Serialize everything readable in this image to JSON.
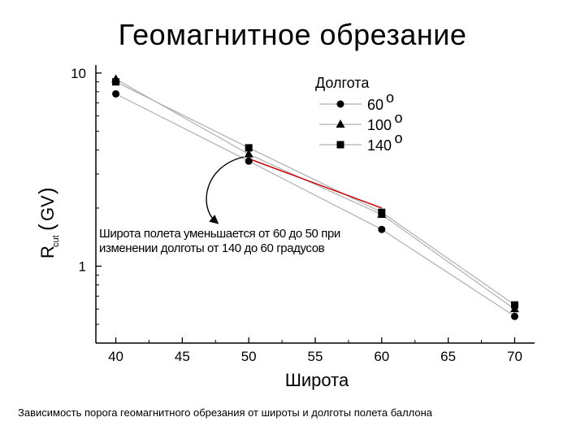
{
  "page": {
    "title": "Геомагнитное обрезание",
    "caption": "Зависимость порога геомагнитного обрезания от широты и долготы полета баллона"
  },
  "chart_data": {
    "type": "line",
    "xlabel": "Широта",
    "ylabel_parts": [
      "R",
      "cut",
      "(",
      "G",
      "V",
      ")"
    ],
    "xlim": [
      38.5,
      71.5
    ],
    "ylim": [
      0.4,
      11
    ],
    "yscale": "log",
    "x_ticks": [
      40,
      45,
      50,
      55,
      60,
      65,
      70
    ],
    "x_tick_labels": [
      "40",
      "45",
      "50",
      "55",
      "60",
      "65",
      "70"
    ],
    "y_ticks": [
      1,
      10
    ],
    "y_tick_labels": [
      "1",
      "10"
    ],
    "grid": false,
    "legend": {
      "title": "Долгота",
      "placement": "top-right",
      "degree_mark": "o"
    },
    "series": [
      {
        "name": "60",
        "marker": "circle",
        "color": "#000000",
        "line_color": "#b0b0b0",
        "x": [
          40,
          50,
          60,
          70
        ],
        "y": [
          7.8,
          3.5,
          1.55,
          0.55
        ]
      },
      {
        "name": "100",
        "marker": "triangle",
        "color": "#000000",
        "line_color": "#b0b0b0",
        "x": [
          40,
          50,
          60,
          70
        ],
        "y": [
          9.3,
          3.8,
          1.85,
          0.6
        ]
      },
      {
        "name": "140",
        "marker": "square",
        "color": "#000000",
        "line_color": "#b0b0b0",
        "x": [
          40,
          50,
          60,
          70
        ],
        "y": [
          9.0,
          4.1,
          1.9,
          0.63
        ]
      }
    ],
    "annotation": {
      "lines": [
        "Широта полета уменьшается от 60 до 50 при",
        "изменении долготы от 140 до 60 градусов"
      ],
      "segment": {
        "color": "#cc0000",
        "from": [
          50,
          3.6
        ],
        "to": [
          60,
          2.0
        ]
      }
    }
  }
}
